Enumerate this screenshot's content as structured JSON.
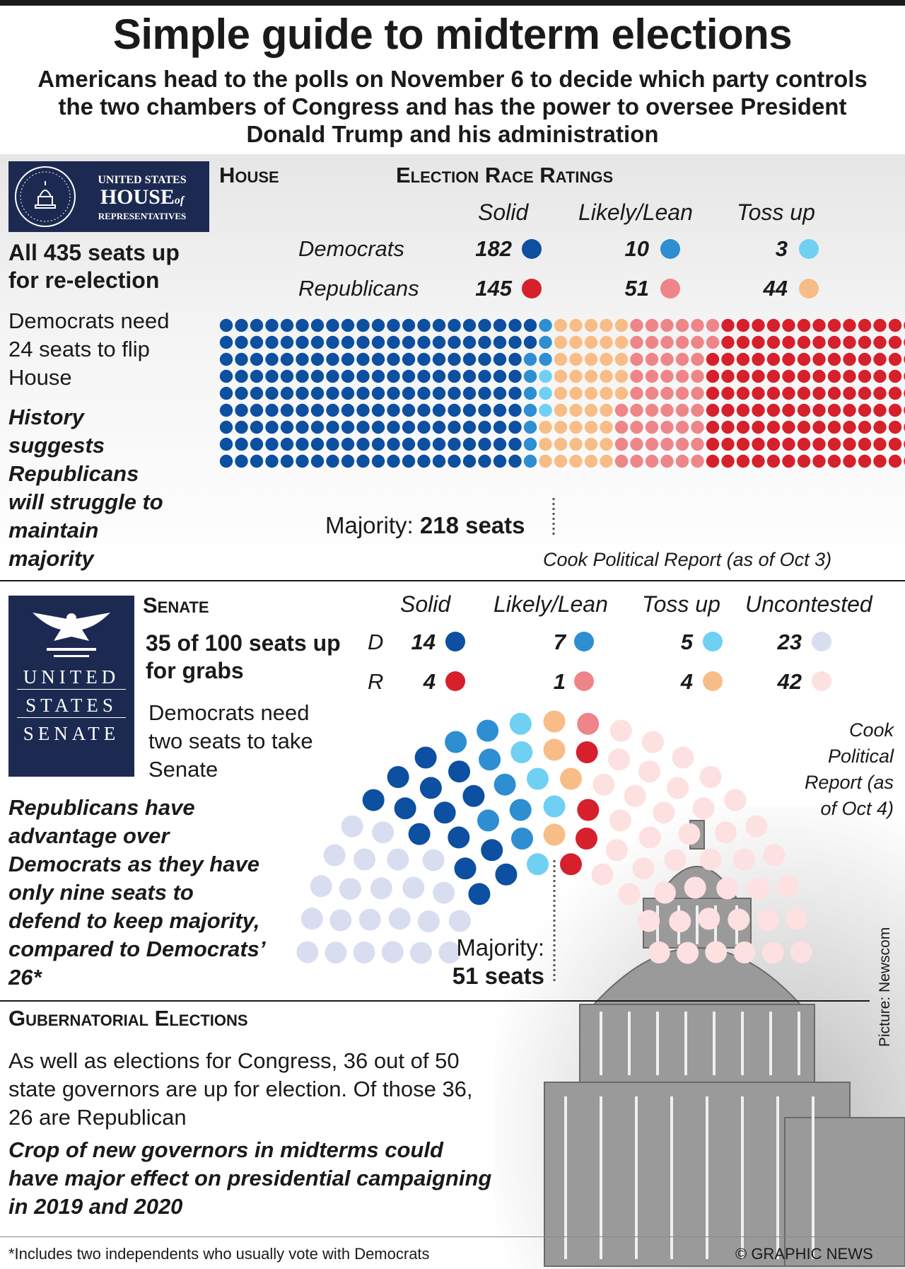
{
  "title": "Simple guide to midterm elections",
  "subtitle": "Americans head to the polls on November 6 to decide which party controls the two chambers of Congress and has the power to oversee President Donald Trump and his administration",
  "colors": {
    "dem_solid": "#0d4fa0",
    "dem_likely": "#2d8ed2",
    "dem_tossup": "#6fd0f4",
    "rep_solid": "#d6202c",
    "rep_likely": "#ee8589",
    "rep_tossup": "#f8bd86",
    "uncontested_dem": "#d8def0",
    "uncontested_rep": "#fde0e0",
    "navy": "#1c2a52"
  },
  "house": {
    "logo": {
      "line1": "UNITED STATES",
      "line2": "HOUSE",
      "line2b": "of",
      "line3": "REPRESENTATIVES"
    },
    "heading": "House",
    "ratings_heading": "Election Race Ratings",
    "seats_text": "All 435 seats up for re-election",
    "need_text": "Democrats need 24 seats to flip House",
    "history_text": "History suggests Republicans will struggle to maintain majority",
    "majority_label": "Majority:",
    "majority_value": "218 seats",
    "source": "Cook Political Report (as of Oct 3)"
  },
  "senate": {
    "logo": {
      "line1": "UNITED",
      "line2": "STATES",
      "line3": "SENATE"
    },
    "heading": "Senate",
    "seats_text": "35 of 100 seats up for grabs",
    "need_text": "Democrats need two seats to take Senate",
    "advantage_text": "Republicans have advantage over Democrats as they have only nine seats to defend to keep majority, compared to Democrats’ 26*",
    "majority_label": "Majority:",
    "majority_value": "51 seats",
    "source": "Cook Political Report (as of Oct 4)"
  },
  "governors": {
    "heading": "Gubernatorial Elections",
    "text": "As well as elections for Congress, 36 out of 50 state governors are up for election. Of those 36, 26 are Republican",
    "emphasis": "Crop of new governors in midterms could have major effect on presidential campaigning in 2019 and 2020"
  },
  "footnote": "*Includes two independents who usually vote with Democrats",
  "credit": "© GRAPHIC NEWS",
  "picture_credit": "Picture: Newscom",
  "chart_data": [
    {
      "type": "table",
      "chamber": "House",
      "categories": [
        "Solid",
        "Likely/Lean",
        "Toss up"
      ],
      "series": [
        {
          "name": "Democrats",
          "values": [
            182,
            10,
            3
          ]
        },
        {
          "name": "Republicans",
          "values": [
            145,
            51,
            44
          ]
        }
      ],
      "total_seats": 435,
      "majority": 218
    },
    {
      "type": "table",
      "chamber": "Senate",
      "categories": [
        "Solid",
        "Likely/Lean",
        "Toss up",
        "Uncontested"
      ],
      "series": [
        {
          "name": "D",
          "values": [
            14,
            7,
            5,
            23
          ]
        },
        {
          "name": "R",
          "values": [
            4,
            1,
            4,
            42
          ]
        }
      ],
      "total_seats": 100,
      "majority": 51
    }
  ]
}
